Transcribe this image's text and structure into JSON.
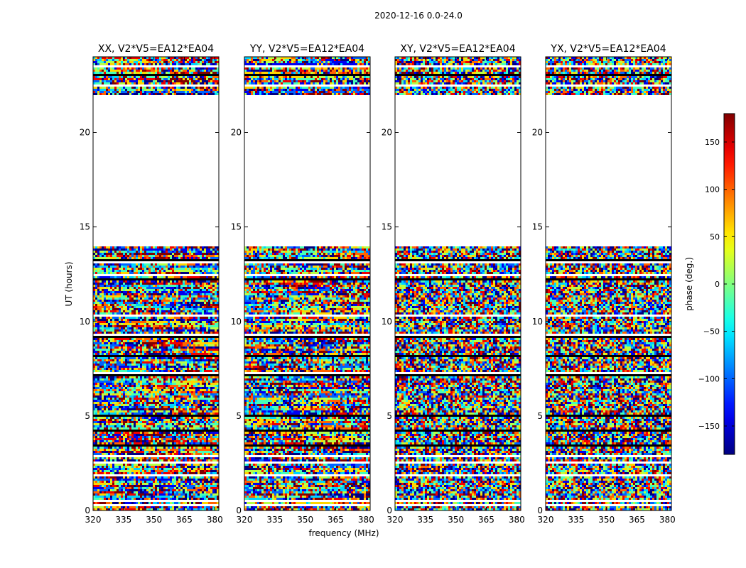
{
  "chart_data": {
    "type": "heatmap",
    "title": "2020-12-16 0.0-24.0",
    "xlabel": "frequency (MHz)",
    "ylabel": "UT (hours)",
    "xlim": [
      320,
      382
    ],
    "ylim": [
      0,
      24
    ],
    "x_ticks": [
      "320",
      "335",
      "350",
      "365",
      "380"
    ],
    "x_tick_values": [
      320,
      335,
      350,
      365,
      380
    ],
    "y_ticks": [
      "0",
      "5",
      "10",
      "15",
      "20"
    ],
    "y_tick_values": [
      0,
      5,
      10,
      15,
      20
    ],
    "colorbar": {
      "label": "phase (deg.)",
      "range": [
        -180,
        180
      ],
      "ticks": [
        "150",
        "100",
        "50",
        "0",
        "−50",
        "−100",
        "−150"
      ],
      "tick_values": [
        150,
        100,
        50,
        0,
        -50,
        -100,
        -150
      ],
      "colormap": "jet"
    },
    "panels": [
      {
        "name": "XX",
        "title": "XX, V2*V5=EA12*EA04",
        "coherent": true
      },
      {
        "name": "YY",
        "title": "YY, V2*V5=EA12*EA04",
        "coherent": true
      },
      {
        "name": "XY",
        "title": "XY, V2*V5=EA12*EA04",
        "coherent": false
      },
      {
        "name": "YX",
        "title": "YX, V2*V5=EA12*EA04",
        "coherent": false
      }
    ],
    "data_intervals_hours": [
      [
        0.0,
        14.0
      ],
      [
        22.0,
        24.0
      ]
    ],
    "gap_hours": [
      [
        14.0,
        22.0
      ]
    ],
    "flagged_rows_hours": [
      0.3,
      0.55,
      1.9,
      2.5,
      2.9,
      3.45,
      4.2,
      5.0,
      7.2,
      7.3,
      8.2,
      9.2,
      9.3,
      10.3,
      12.2,
      12.5,
      13.1,
      13.2,
      22.5,
      23.0,
      23.5
    ]
  }
}
